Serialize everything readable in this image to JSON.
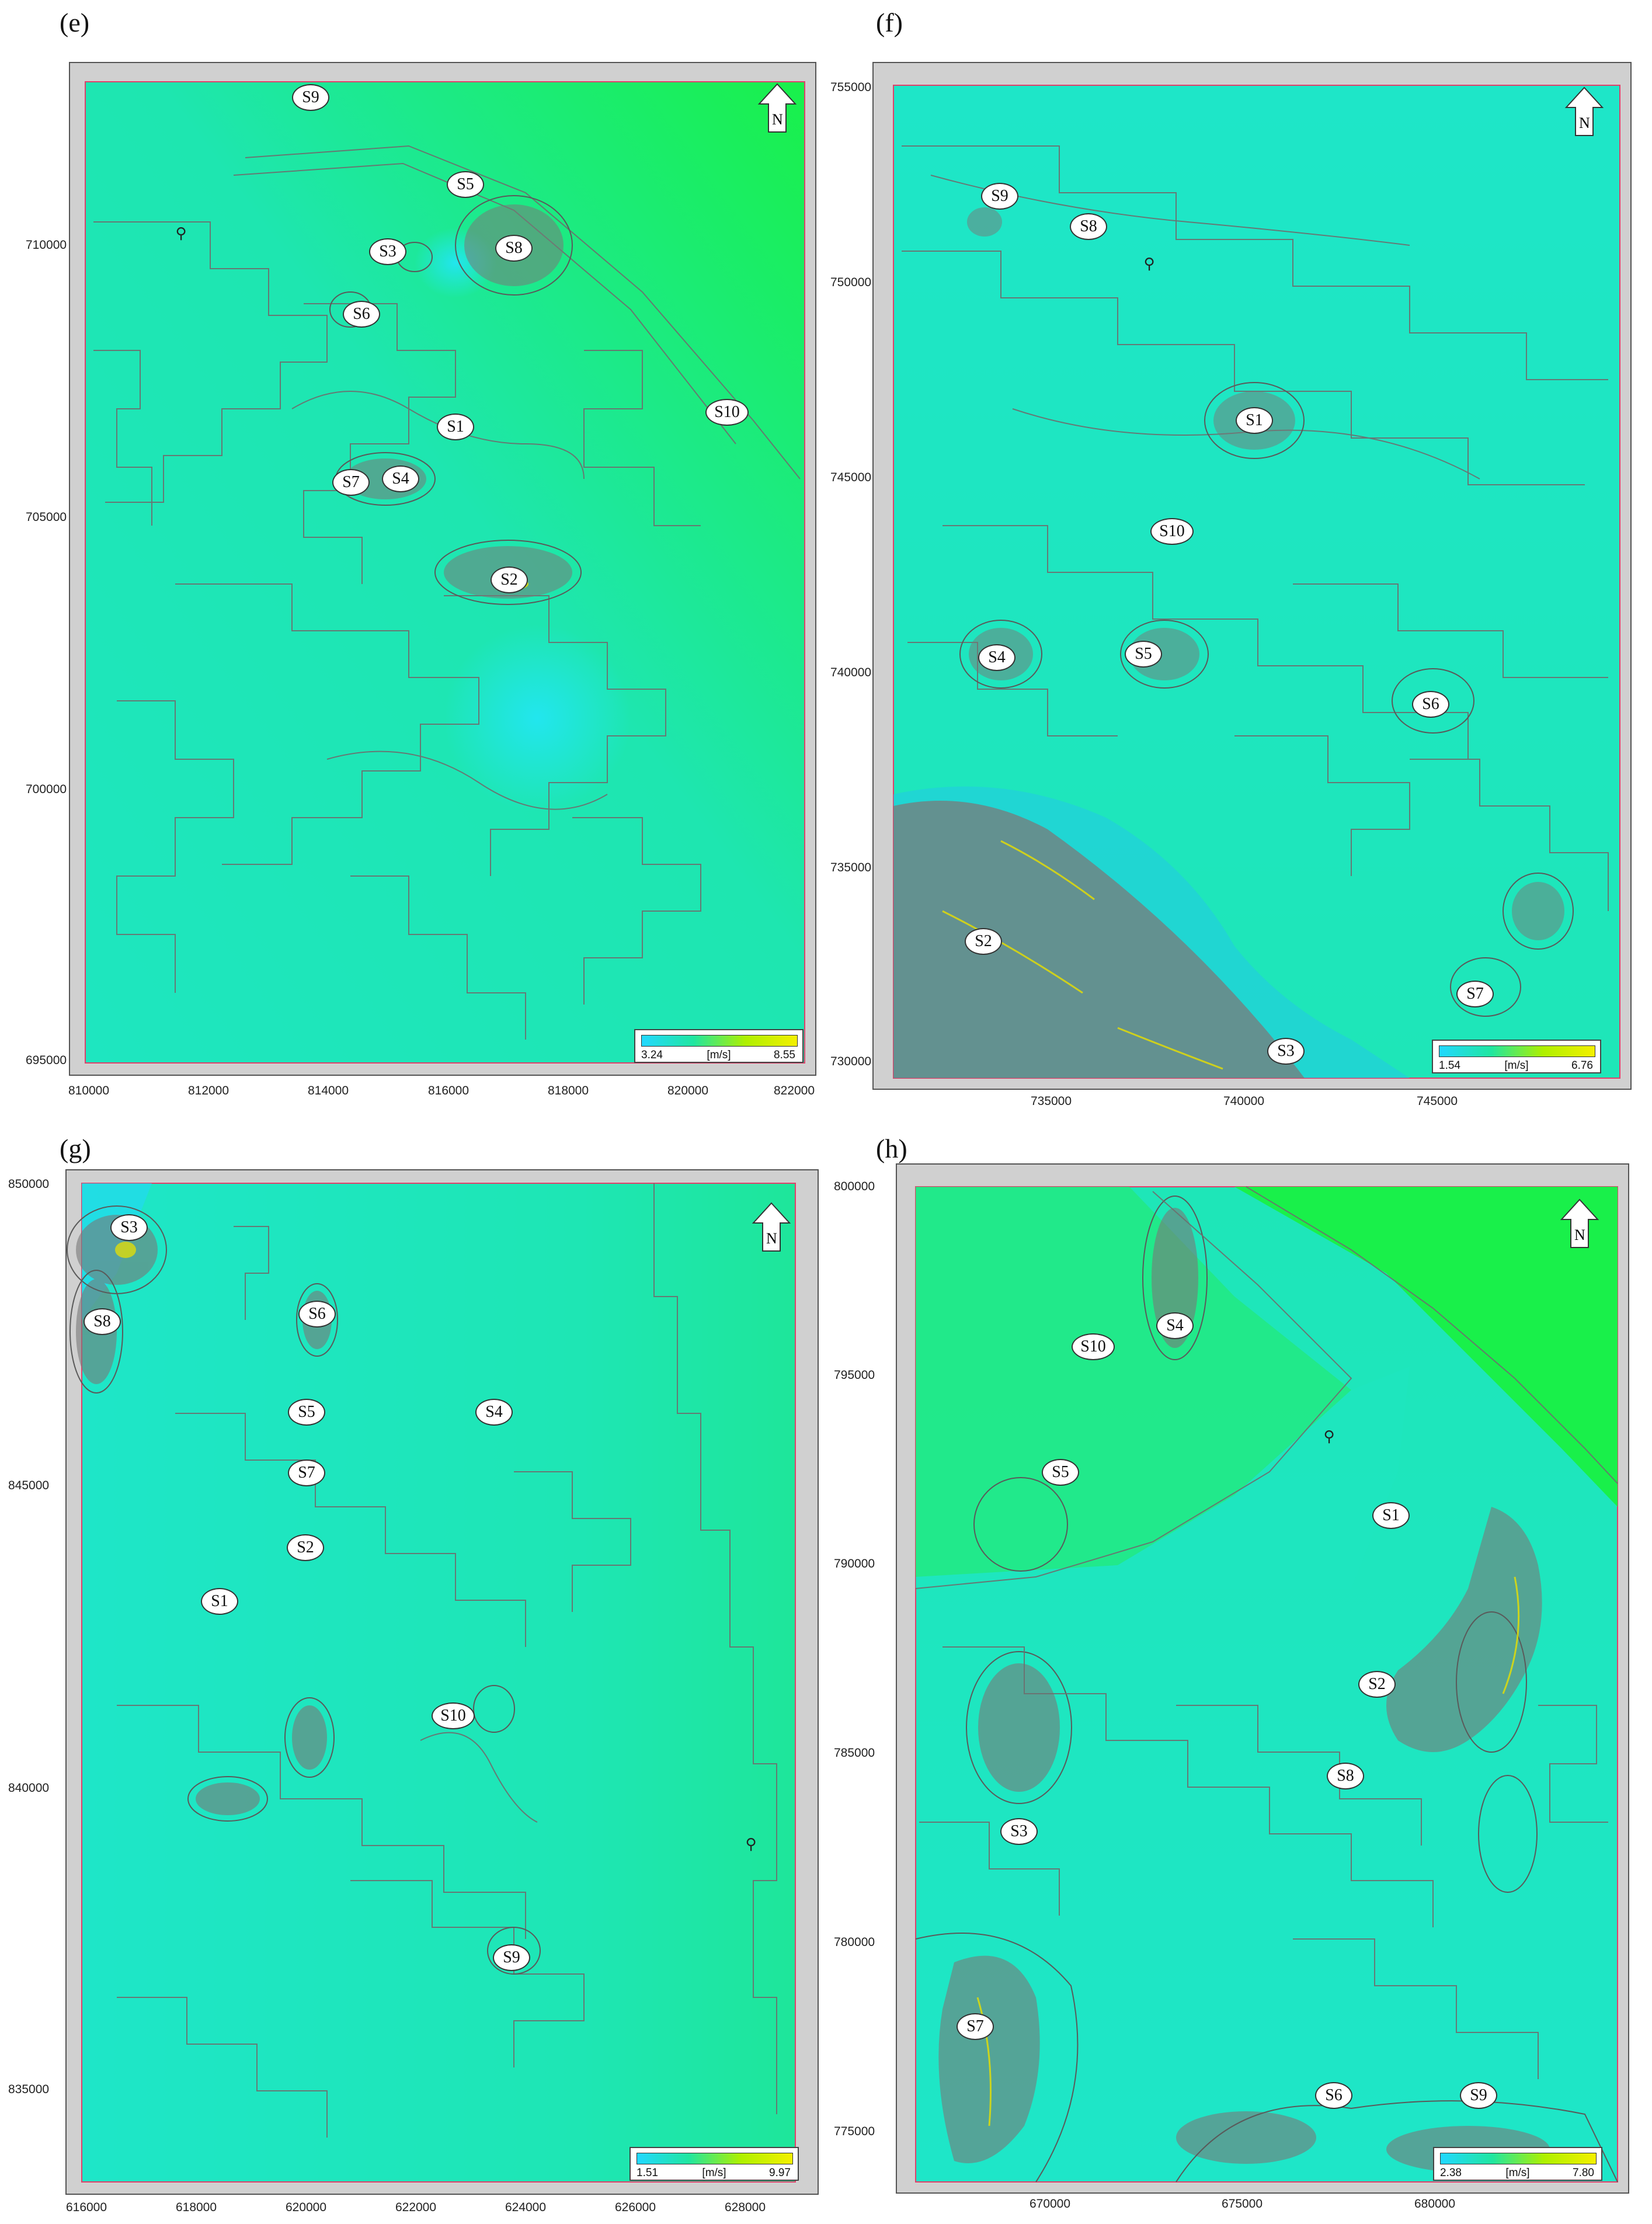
{
  "panels": [
    {
      "label": "(e)",
      "y_ticks": [
        "710000",
        "705000",
        "700000",
        "695000"
      ],
      "x_ticks": [
        "810000",
        "812000",
        "814000",
        "816000",
        "818000",
        "820000",
        "822000"
      ],
      "legend": {
        "min": "3.24",
        "unit": "[m/s]",
        "max": "8.55"
      },
      "north_label": "N",
      "sites": [
        "S9",
        "S5",
        "S8",
        "S3",
        "S6",
        "S10",
        "S1",
        "S7",
        "S4",
        "S2"
      ]
    },
    {
      "label": "(f)",
      "y_ticks": [
        "755000",
        "750000",
        "745000",
        "740000",
        "735000",
        "730000"
      ],
      "x_ticks": [
        "735000",
        "740000",
        "745000"
      ],
      "legend": {
        "min": "1.54",
        "unit": "[m/s]",
        "max": "6.76"
      },
      "north_label": "N",
      "sites": [
        "S9",
        "S8",
        "S1",
        "S10",
        "S4",
        "S5",
        "S6",
        "S2",
        "S7",
        "S3"
      ]
    },
    {
      "label": "(g)",
      "y_ticks": [
        "850000",
        "845000",
        "840000",
        "835000"
      ],
      "x_ticks": [
        "616000",
        "618000",
        "620000",
        "622000",
        "624000",
        "626000",
        "628000"
      ],
      "legend": {
        "min": "1.51",
        "unit": "[m/s]",
        "max": "9.97"
      },
      "north_label": "N",
      "sites": [
        "S3",
        "S8",
        "S6",
        "S5",
        "S4",
        "S7",
        "S2",
        "S1",
        "S10",
        "S9"
      ]
    },
    {
      "label": "(h)",
      "y_ticks": [
        "800000",
        "795000",
        "790000",
        "785000",
        "780000",
        "775000"
      ],
      "x_ticks": [
        "670000",
        "675000",
        "680000"
      ],
      "legend": {
        "min": "2.38",
        "unit": "[m/s]",
        "max": "7.80"
      },
      "north_label": "N",
      "sites": [
        "S10",
        "S4",
        "S5",
        "S1",
        "S2",
        "S8",
        "S3",
        "S7",
        "S6",
        "S9"
      ]
    }
  ],
  "colors": {
    "low_speed": "#1ee6e6",
    "mid_speed": "#1ee6b4",
    "high_speed": "#22e66a",
    "peak_speed": "#f0f000",
    "contour": "#6e6e6e",
    "frame": "#d0d0d0",
    "boundary": "#e0406a"
  },
  "icons": {
    "north": "north-arrow-icon",
    "turbine": "turbine-icon"
  }
}
